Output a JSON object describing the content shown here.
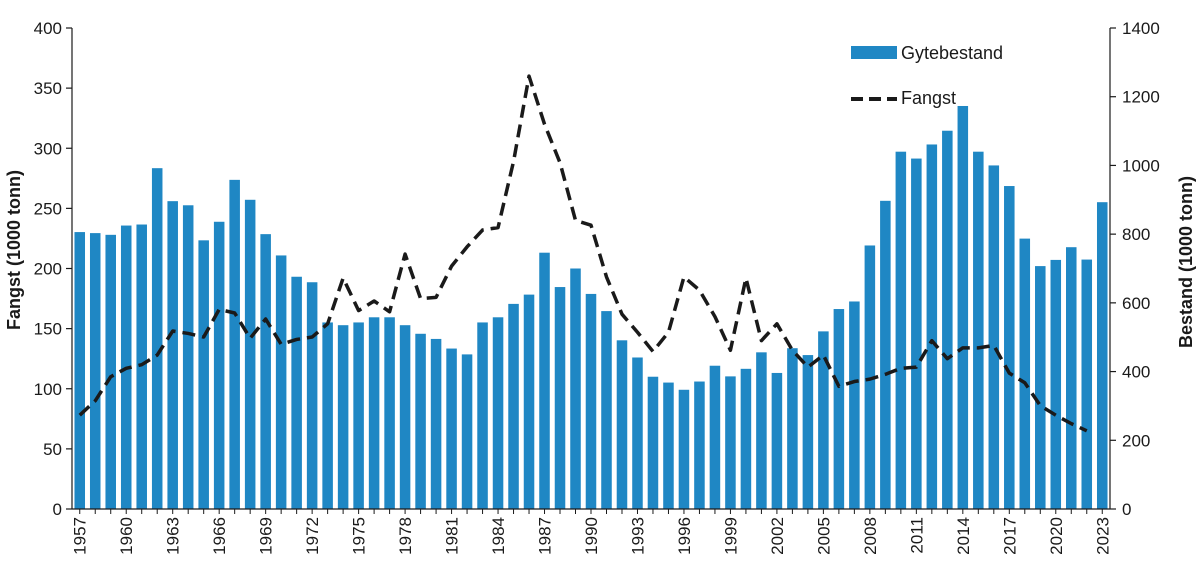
{
  "chart_data": {
    "type": "bar+line",
    "title": "",
    "xlabel": "",
    "left_axis": {
      "label": "Fangst (1000 tonn)",
      "ylim": [
        0,
        400
      ],
      "ticks": [
        "0",
        "50",
        "100",
        "150",
        "200",
        "250",
        "300",
        "350",
        "400"
      ]
    },
    "right_axis": {
      "label": "Bestand (1000 tonn)",
      "ylim": [
        0,
        1400
      ],
      "ticks": [
        "0",
        "200",
        "400",
        "600",
        "800",
        "1000",
        "1200",
        "1400"
      ]
    },
    "years": [
      1957,
      1958,
      1959,
      1960,
      1961,
      1962,
      1963,
      1964,
      1965,
      1966,
      1967,
      1968,
      1969,
      1970,
      1971,
      1972,
      1973,
      1974,
      1975,
      1976,
      1977,
      1978,
      1979,
      1980,
      1981,
      1982,
      1983,
      1984,
      1985,
      1986,
      1987,
      1988,
      1989,
      1990,
      1991,
      1992,
      1993,
      1994,
      1995,
      1996,
      1997,
      1998,
      1999,
      2000,
      2001,
      2002,
      2003,
      2004,
      2005,
      2006,
      2007,
      2008,
      2009,
      2010,
      2011,
      2012,
      2013,
      2014,
      2015,
      2016,
      2017,
      2018,
      2019,
      2020,
      2021,
      2022,
      2023
    ],
    "x_tick_labels": [
      "1957",
      "1960",
      "1963",
      "1966",
      "1969",
      "1972",
      "1975",
      "1978",
      "1981",
      "1984",
      "1987",
      "1990",
      "1993",
      "1996",
      "1999",
      "2002",
      "2005",
      "2008",
      "2011",
      "2014",
      "2017",
      "2020",
      "2023"
    ],
    "series": [
      {
        "name": "Gytebestand",
        "kind": "bar",
        "axis": "right",
        "color": "#1f87c4",
        "values": [
          806,
          803,
          798,
          825,
          828,
          992,
          896,
          884,
          782,
          836,
          958,
          900,
          800,
          738,
          676,
          660,
          543,
          535,
          543,
          558,
          558,
          535,
          510,
          495,
          467,
          450,
          543,
          558,
          597,
          624,
          746,
          646,
          700,
          626,
          576,
          491,
          441,
          385,
          368,
          347,
          371,
          417,
          386,
          408,
          456,
          396,
          468,
          448,
          517,
          582,
          604,
          767,
          897,
          1040,
          1020,
          1061,
          1101,
          1173,
          1040,
          1000,
          940,
          787,
          707,
          725,
          762,
          726,
          893
        ]
      },
      {
        "name": "Fangst",
        "kind": "line",
        "axis": "left",
        "style": "dashed",
        "color": "#1a1a1a",
        "values": [
          78,
          90,
          110,
          117,
          120,
          128,
          148,
          146,
          143,
          166,
          163,
          142,
          158,
          137,
          141,
          143,
          154,
          192,
          165,
          173,
          164,
          212,
          175,
          176,
          202,
          218,
          232,
          234,
          289,
          360,
          320,
          288,
          240,
          236,
          193,
          162,
          147,
          131,
          147,
          193,
          182,
          160,
          132,
          192,
          140,
          154,
          132,
          118,
          128,
          102,
          106,
          108,
          112,
          117,
          118,
          140,
          125,
          134,
          134,
          136,
          113,
          105,
          86,
          78,
          71,
          65
        ]
      }
    ],
    "legend": {
      "position": "top-right"
    }
  }
}
